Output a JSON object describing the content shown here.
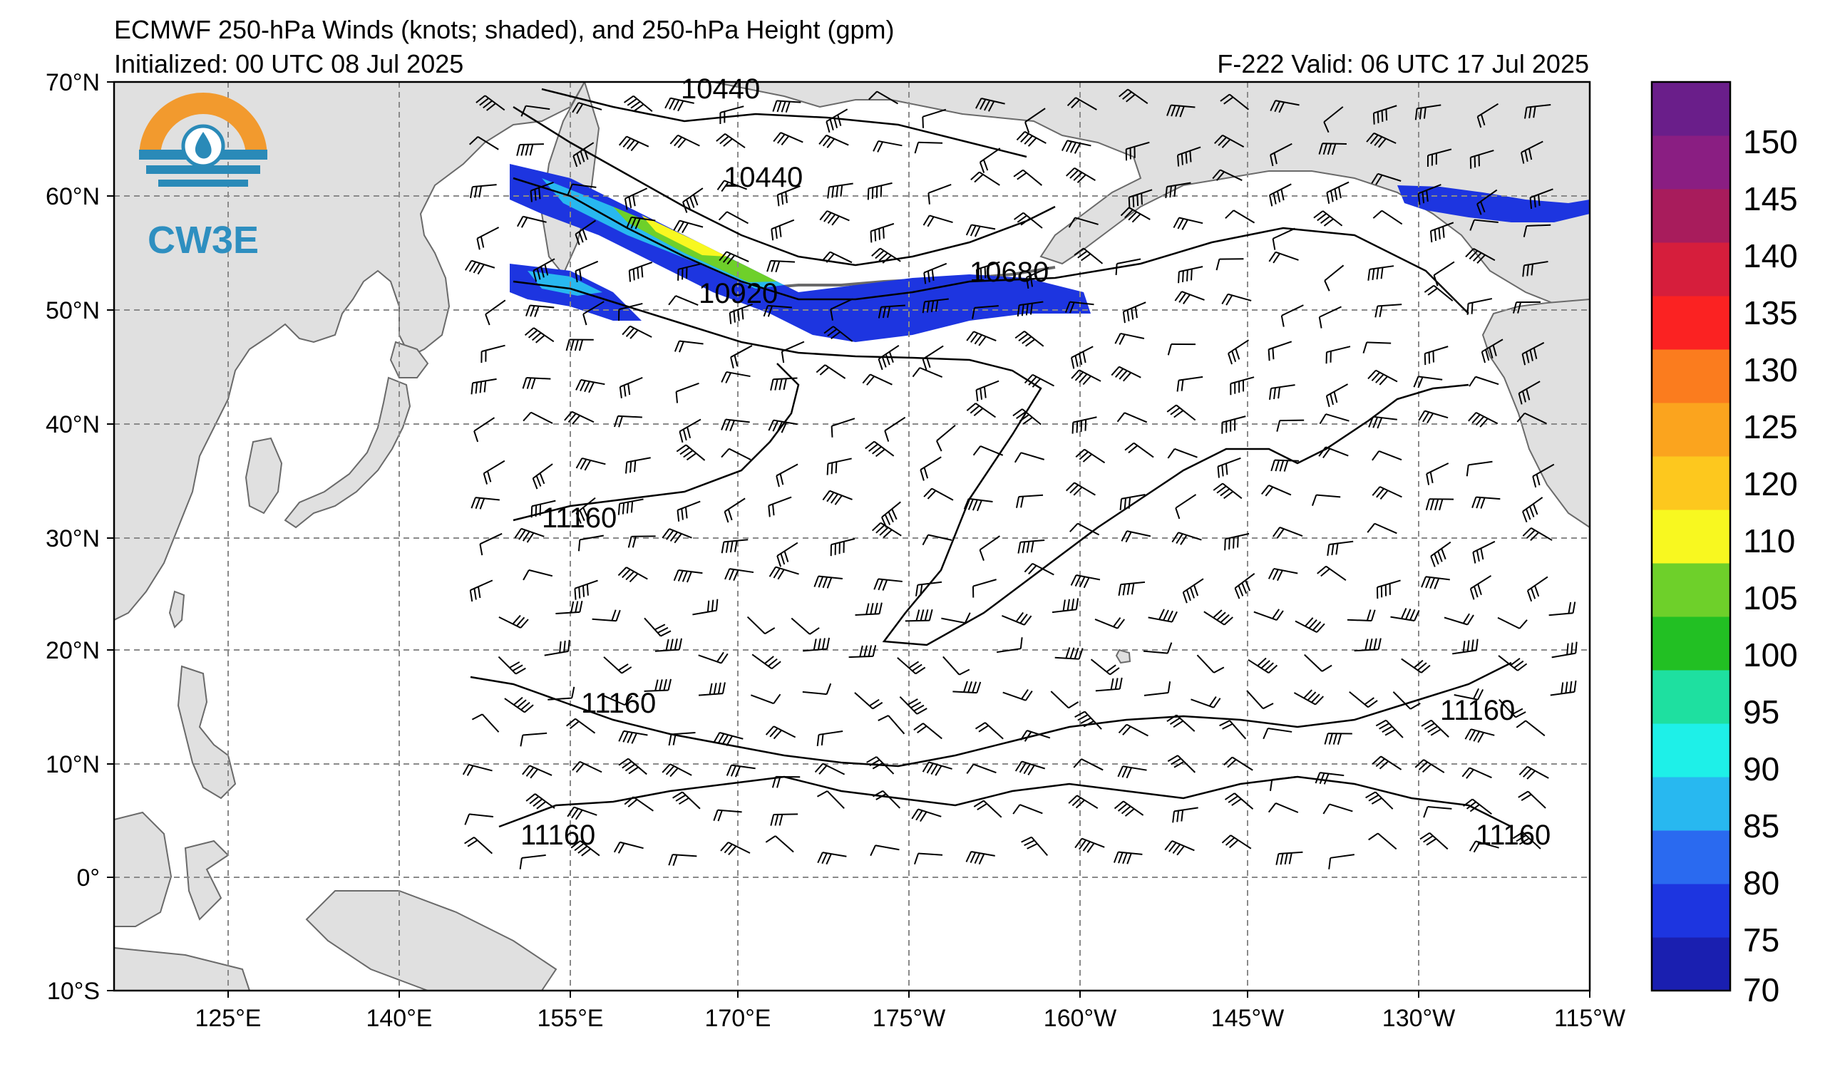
{
  "header": {
    "title": "ECMWF 250-hPa Winds (knots; shaded), and 250-hPa Height (gpm)",
    "initialized": "Initialized: 00 UTC 08 Jul 2025",
    "valid": "F-222  Valid: 06 UTC 17 Jul 2025"
  },
  "logo": {
    "text": "CW3E",
    "colors": {
      "ring": "#f29a2e",
      "water": "#2a8ab8",
      "text": "#2e8fc0"
    }
  },
  "axes": {
    "lat_labels": [
      "70°N",
      "60°N",
      "50°N",
      "40°N",
      "30°N",
      "20°N",
      "10°N",
      "0°",
      "10°S"
    ],
    "lon_labels": [
      "125°E",
      "140°E",
      "155°E",
      "170°E",
      "175°W",
      "160°W",
      "145°W",
      "130°W",
      "115°W"
    ]
  },
  "contours": {
    "labels": [
      "10440",
      "10440",
      "10680",
      "10920",
      "11160",
      "11160",
      "11160",
      "11160",
      "11160"
    ]
  },
  "colorbar": {
    "labels": [
      "150",
      "145",
      "140",
      "135",
      "130",
      "125",
      "120",
      "110",
      "105",
      "100",
      "95",
      "90",
      "85",
      "80",
      "75",
      "70"
    ],
    "colors": [
      "#1a1fb0",
      "#1d35e0",
      "#2a6af0",
      "#28b8f0",
      "#1ef0e8",
      "#1ee0a0",
      "#22c023",
      "#6ed02a",
      "#f8f820",
      "#fdc81e",
      "#fba41e",
      "#fb7c1e",
      "#fb2222",
      "#d61e3c",
      "#a81c5c",
      "#8a1e82",
      "#6a1e8a"
    ]
  },
  "map_colors": {
    "land": "#e0e0e0",
    "ocean": "#ffffff",
    "coast": "#6a6a6a",
    "grid": "#8a8a8a"
  }
}
